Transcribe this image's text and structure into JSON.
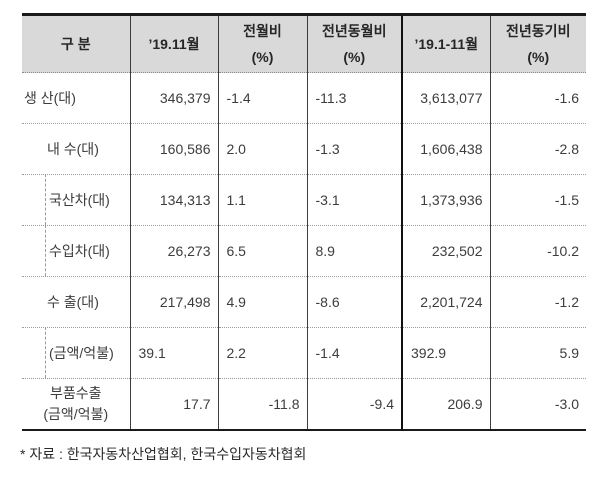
{
  "table": {
    "header": [
      {
        "line1": "구 분",
        "line2": ""
      },
      {
        "line1": "’19.11월",
        "line2": ""
      },
      {
        "line1": "전월비",
        "line2": "(%)"
      },
      {
        "line1": "전년동월비",
        "line2": "(%)"
      },
      {
        "line1": "’19.1-11월",
        "line2": ""
      },
      {
        "line1": "전년동기비",
        "line2": "(%)"
      }
    ],
    "rows": [
      {
        "label": "생 산(대)",
        "values": [
          "346,379",
          "-1.4",
          "-11.3",
          "3,613,077",
          "-1.6"
        ]
      },
      {
        "label": "내 수(대)",
        "values": [
          "160,586",
          "2.0",
          "-1.3",
          "1,606,438",
          "-2.8"
        ]
      },
      {
        "label": "국산차(대)",
        "values": [
          "134,313",
          "1.1",
          "-3.1",
          "1,373,936",
          "-1.5"
        ]
      },
      {
        "label": "수입차(대)",
        "values": [
          "26,273",
          "6.5",
          "8.9",
          "232,502",
          "-10.2"
        ]
      },
      {
        "label": "수 출(대)",
        "values": [
          "217,498",
          "4.9",
          "-8.6",
          "2,201,724",
          "-1.2"
        ]
      },
      {
        "label": "(금액/억불)",
        "values": [
          "39.1",
          "2.2",
          "-1.4",
          "392.9",
          "5.9"
        ]
      },
      {
        "label": "부품수출",
        "label2": "(금액/억불)",
        "values": [
          "17.7",
          "-11.8",
          "-9.4",
          "206.9",
          "-3.0"
        ]
      }
    ],
    "footnote": "* 자료 : 한국자동차산업협회, 한국수입자동차협회"
  },
  "colors": {
    "header_bg": "#d9d9d9",
    "border_strong": "#1a1a1a",
    "border_column": "#3d3d3d",
    "border_dotted": "#9a9a9a",
    "text": "#333333"
  }
}
